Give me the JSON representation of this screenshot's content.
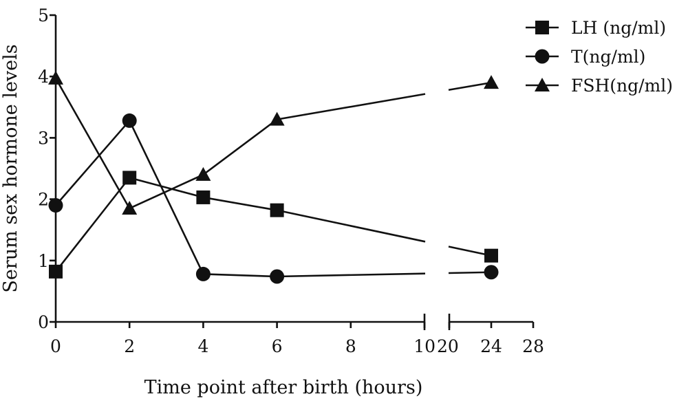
{
  "chart_data": {
    "type": "line",
    "title": "",
    "xlabel": "Time point after birth (hours)",
    "ylabel": "Serum sex hormone levels",
    "ylim": [
      0,
      5
    ],
    "yticks": [
      "0",
      "1",
      "2",
      "3",
      "4",
      "5"
    ],
    "x_segments": [
      {
        "range": [
          0,
          10
        ],
        "ticks": [
          "0",
          "2",
          "4",
          "6",
          "8",
          "10"
        ]
      },
      {
        "range": [
          20,
          28
        ],
        "ticks": [
          "20",
          "24",
          "28"
        ]
      }
    ],
    "x_axis_break": [
      10,
      20
    ],
    "x": [
      0,
      2,
      4,
      6,
      24
    ],
    "series": [
      {
        "name": "LH (ng/ml)",
        "marker": "square",
        "values": [
          0.82,
          2.35,
          2.03,
          1.82,
          1.08
        ]
      },
      {
        "name": "T(ng/ml)",
        "marker": "circle",
        "values": [
          1.9,
          3.28,
          0.78,
          0.74,
          0.81
        ]
      },
      {
        "name": "FSH(ng/ml)",
        "marker": "triangle",
        "values": [
          3.97,
          1.85,
          2.4,
          3.3,
          3.9
        ]
      }
    ],
    "legend_position": "top-right",
    "grid": false
  }
}
